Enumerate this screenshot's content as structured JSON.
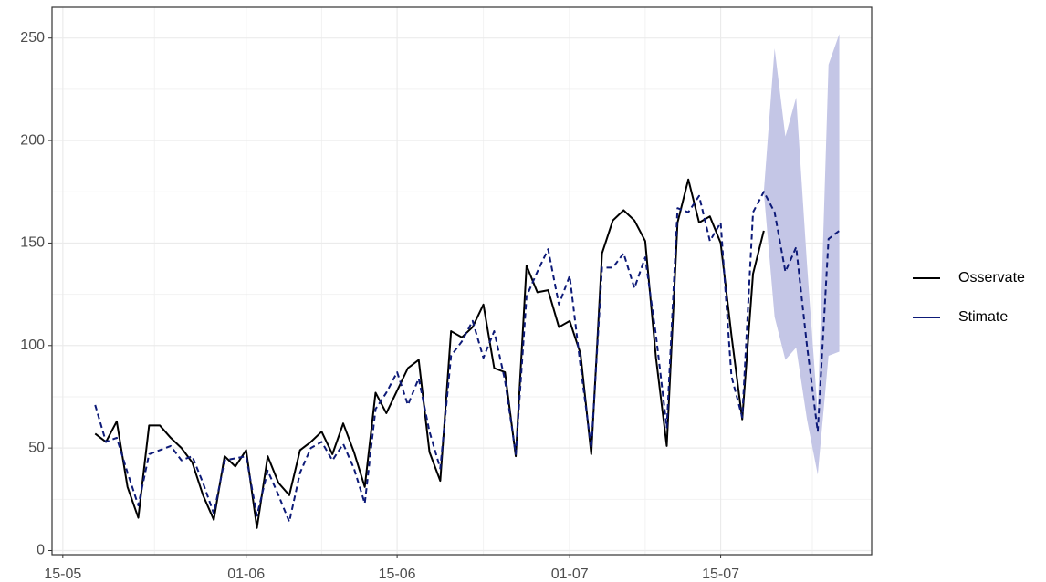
{
  "chart_data": {
    "type": "line",
    "x": [
      "18-05",
      "19-05",
      "20-05",
      "21-05",
      "22-05",
      "23-05",
      "24-05",
      "25-05",
      "26-05",
      "27-05",
      "28-05",
      "29-05",
      "30-05",
      "31-05",
      "01-06",
      "02-06",
      "03-06",
      "04-06",
      "05-06",
      "06-06",
      "07-06",
      "08-06",
      "09-06",
      "10-06",
      "11-06",
      "12-06",
      "13-06",
      "14-06",
      "15-06",
      "16-06",
      "17-06",
      "18-06",
      "19-06",
      "20-06",
      "21-06",
      "22-06",
      "23-06",
      "24-06",
      "25-06",
      "26-06",
      "27-06",
      "28-06",
      "29-06",
      "30-06",
      "01-07",
      "02-07",
      "03-07",
      "04-07",
      "05-07",
      "06-07",
      "07-07",
      "08-07",
      "09-07",
      "10-07",
      "11-07",
      "12-07",
      "13-07",
      "14-07",
      "15-07",
      "16-07",
      "17-07",
      "18-07",
      "19-07",
      "20-07",
      "21-07",
      "22-07",
      "23-07",
      "24-07",
      "25-07",
      "26-07"
    ],
    "series": [
      {
        "name": "Osservate",
        "color": "#000000",
        "dash": false,
        "values": [
          57,
          53,
          63,
          31,
          16,
          61,
          61,
          55,
          50,
          43,
          27,
          15,
          46,
          41,
          49,
          11,
          46,
          33,
          27,
          49,
          53,
          58,
          47,
          62,
          48,
          31,
          77,
          67,
          78,
          89,
          93,
          48,
          34,
          107,
          104,
          109,
          120,
          89,
          87,
          46,
          139,
          126,
          127,
          109,
          112,
          96,
          47,
          145,
          161,
          166,
          161,
          151,
          94,
          51,
          160,
          181,
          160,
          163,
          150,
          105,
          64,
          135,
          156,
          null,
          null,
          null,
          null,
          null,
          null,
          null
        ]
      },
      {
        "name": "Stimate",
        "color": "#0d1a78",
        "dash": true,
        "values": [
          71,
          53,
          55,
          38,
          22,
          47,
          49,
          51,
          44,
          46,
          33,
          18,
          44,
          45,
          46,
          17,
          39,
          27,
          14,
          38,
          50,
          53,
          44,
          52,
          40,
          23,
          69,
          77,
          87,
          71,
          84,
          58,
          40,
          95,
          102,
          112,
          94,
          107,
          83,
          47,
          124,
          136,
          147,
          120,
          134,
          90,
          50,
          138,
          138,
          145,
          128,
          143,
          105,
          60,
          167,
          165,
          173,
          151,
          160,
          85,
          65,
          165,
          175,
          165,
          136,
          148,
          100,
          58,
          152,
          156
        ]
      }
    ],
    "band": {
      "color": "#c4c6e6",
      "lower": [
        null,
        null,
        null,
        null,
        null,
        null,
        null,
        null,
        null,
        null,
        null,
        null,
        null,
        null,
        null,
        null,
        null,
        null,
        null,
        null,
        null,
        null,
        null,
        null,
        null,
        null,
        null,
        null,
        null,
        null,
        null,
        null,
        null,
        null,
        null,
        null,
        null,
        null,
        null,
        null,
        null,
        null,
        null,
        null,
        null,
        null,
        null,
        null,
        null,
        null,
        null,
        null,
        null,
        null,
        null,
        null,
        null,
        null,
        null,
        null,
        null,
        null,
        175,
        114,
        93,
        99,
        64,
        37,
        95,
        97
      ],
      "upper": [
        null,
        null,
        null,
        null,
        null,
        null,
        null,
        null,
        null,
        null,
        null,
        null,
        null,
        null,
        null,
        null,
        null,
        null,
        null,
        null,
        null,
        null,
        null,
        null,
        null,
        null,
        null,
        null,
        null,
        null,
        null,
        null,
        null,
        null,
        null,
        null,
        null,
        null,
        null,
        null,
        null,
        null,
        null,
        null,
        null,
        null,
        null,
        null,
        null,
        null,
        null,
        null,
        null,
        null,
        null,
        null,
        null,
        null,
        null,
        null,
        null,
        null,
        175,
        245,
        202,
        221,
        140,
        67,
        237,
        252
      ]
    },
    "xlim": [
      "14-05",
      "29-07"
    ],
    "xticks": [
      "15-05",
      "01-06",
      "15-06",
      "01-07",
      "15-07"
    ],
    "ylim": [
      -2,
      265
    ],
    "yticks": [
      0,
      50,
      100,
      150,
      200,
      250
    ],
    "grid": true,
    "legend": "right"
  }
}
